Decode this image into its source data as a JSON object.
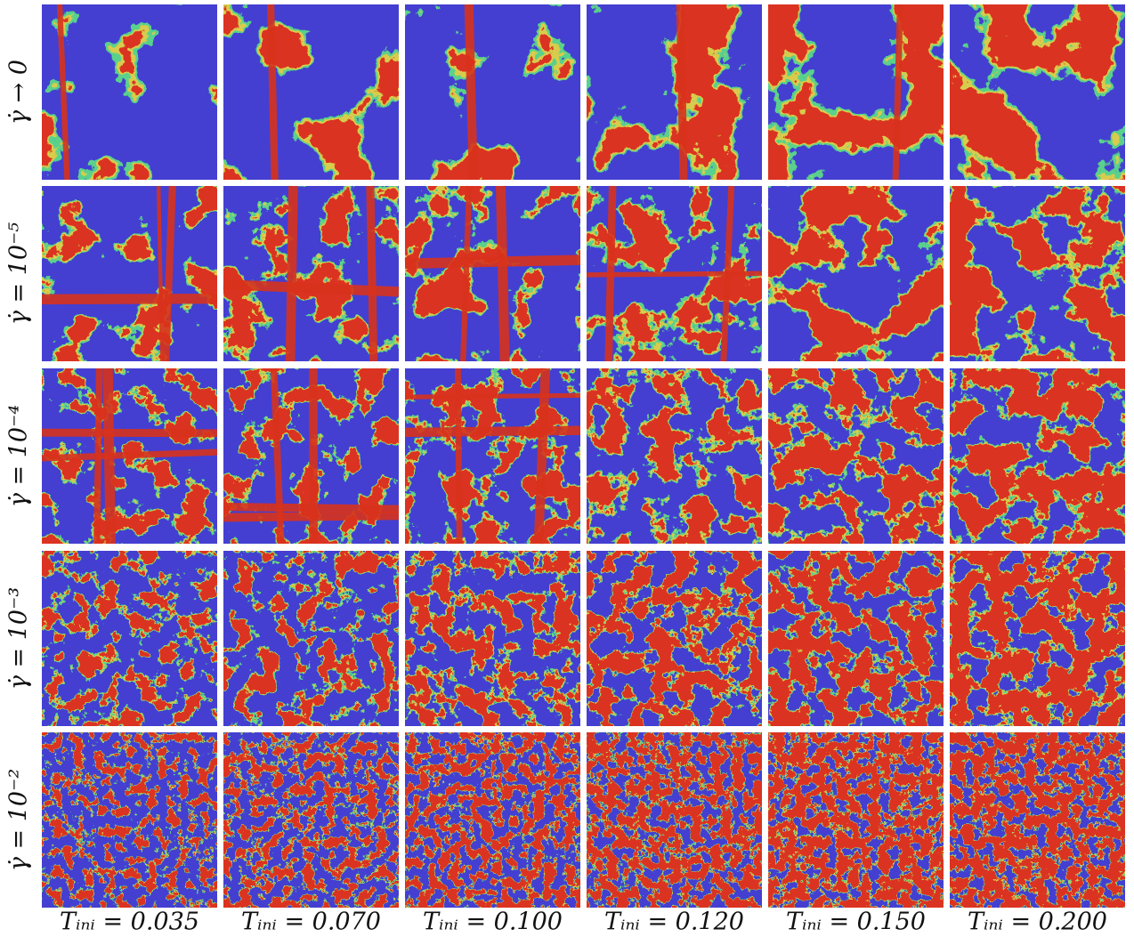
{
  "figure": {
    "row_labels": [
      "γ̇ → 0",
      "γ̇ = 10⁻⁵",
      "γ̇ = 10⁻⁴",
      "γ̇ = 10⁻³",
      "γ̇ = 10⁻²"
    ],
    "column_labels": [
      "Tᵢₙᵢ = 0.035",
      "Tᵢₙᵢ = 0.070",
      "Tᵢₙᵢ = 0.100",
      "Tᵢₙᵢ = 0.120",
      "Tᵢₙᵢ = 0.150",
      "Tᵢₙᵢ = 0.200"
    ]
  }
}
